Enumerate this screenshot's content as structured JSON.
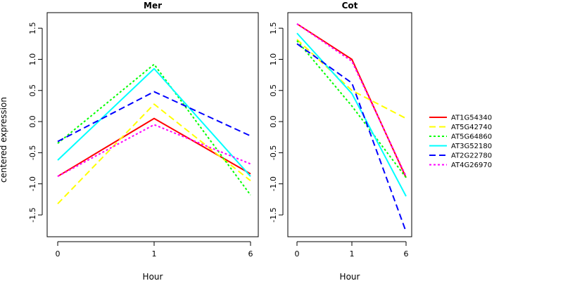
{
  "chart_data": {
    "type": "line",
    "ylabel": "centered expression",
    "legend_position": "right",
    "series_styles": [
      {
        "color": "#ff0000",
        "dash": "solid"
      },
      {
        "color": "#ffff00",
        "dash": "long-dash"
      },
      {
        "color": "#00ff00",
        "dash": "dotted"
      },
      {
        "color": "#00ffff",
        "dash": "solid"
      },
      {
        "color": "#0000ff",
        "dash": "long-dash"
      },
      {
        "color": "#ff00ff",
        "dash": "dotted"
      }
    ],
    "panels": [
      {
        "title": "Mer",
        "xlabel": "Hour",
        "x_ticks": [
          "0",
          "1",
          "6"
        ],
        "ylim": [
          -1.85,
          1.75
        ],
        "y_ticks": [
          -1.5,
          -1.0,
          -0.5,
          0.0,
          0.5,
          1.0,
          1.5
        ],
        "y_tick_labels": [
          "-1.5",
          "-1.0",
          "-0.5",
          "0.0",
          "0.5",
          "1.0",
          "1.5"
        ],
        "series": [
          {
            "name": "AT1G54340",
            "values": [
              -0.88,
              0.05,
              -0.84
            ]
          },
          {
            "name": "AT5G42740",
            "values": [
              -1.32,
              0.28,
              -0.95
            ]
          },
          {
            "name": "AT5G64860",
            "values": [
              -0.35,
              0.92,
              -1.18
            ]
          },
          {
            "name": "AT3G52180",
            "values": [
              -0.62,
              0.85,
              -0.88
            ]
          },
          {
            "name": "AT2G22780",
            "values": [
              -0.32,
              0.48,
              -0.23
            ]
          },
          {
            "name": "AT4G26970",
            "values": [
              -0.88,
              -0.05,
              -0.68
            ]
          }
        ]
      },
      {
        "title": "Cot",
        "xlabel": "Hour",
        "x_ticks": [
          "0",
          "1",
          "6"
        ],
        "ylim": [
          -1.85,
          1.75
        ],
        "y_ticks": [
          -1.5,
          -1.0,
          -0.5,
          0.0,
          0.5,
          1.0,
          1.5
        ],
        "y_tick_labels": [
          "-1.5",
          "-1.0",
          "-0.5",
          "0.0",
          "0.5",
          "1.0",
          "1.5"
        ],
        "series": [
          {
            "name": "AT1G54340",
            "values": [
              1.57,
              1.0,
              -0.9
            ]
          },
          {
            "name": "AT5G42740",
            "values": [
              1.32,
              0.5,
              0.05
            ]
          },
          {
            "name": "AT5G64860",
            "values": [
              1.3,
              0.25,
              -0.9
            ]
          },
          {
            "name": "AT3G52180",
            "values": [
              1.42,
              0.45,
              -1.2
            ]
          },
          {
            "name": "AT2G22780",
            "values": [
              1.25,
              0.62,
              -1.77
            ]
          },
          {
            "name": "AT4G26970",
            "values": [
              1.57,
              0.97,
              -0.88
            ]
          }
        ]
      }
    ],
    "legend": [
      "AT1G54340",
      "AT5G42740",
      "AT5G64860",
      "AT3G52180",
      "AT2G22780",
      "AT4G26970"
    ]
  }
}
